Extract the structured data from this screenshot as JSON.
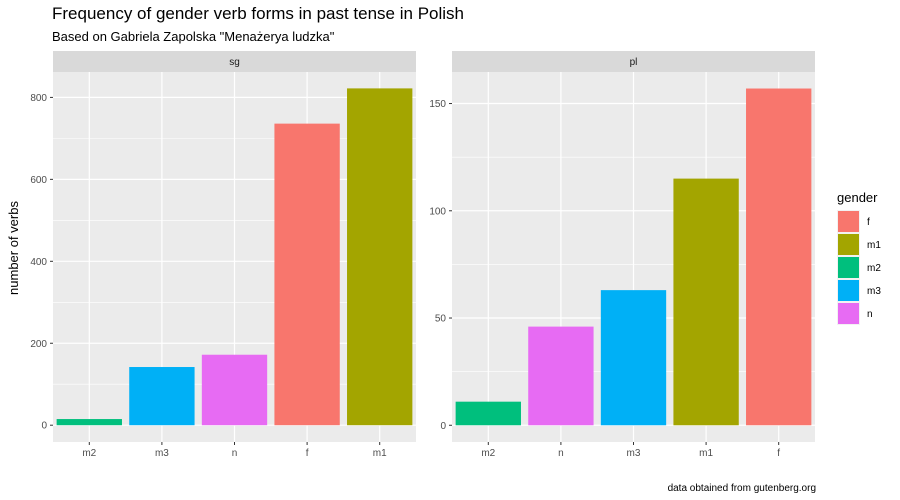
{
  "title": "Frequency of gender verb forms in past tense in Polish",
  "subtitle": "Based on Gabriela Zapolska \"Menażerya ludzka\"",
  "caption": "data obtained from gutenberg.org",
  "colors": {
    "f": "#F8766D",
    "m1": "#A3A500",
    "m2": "#00BF7D",
    "m3": "#00B0F6",
    "n": "#E76BF3",
    "panel_bg": "#EBEBEB",
    "strip_bg": "#D9D9D9",
    "grid": "#FFFFFF"
  },
  "chart_data": [
    {
      "type": "bar",
      "facet": "sg",
      "categories": [
        "m2",
        "m3",
        "n",
        "f",
        "m1"
      ],
      "values": [
        15,
        142,
        172,
        736,
        822
      ],
      "ylabel": "number of verbs",
      "xlabel": "",
      "yticks": [
        0,
        200,
        400,
        600,
        800
      ],
      "ylim": [
        -41,
        862
      ]
    },
    {
      "type": "bar",
      "facet": "pl",
      "categories": [
        "m2",
        "n",
        "m3",
        "m1",
        "f"
      ],
      "values": [
        11,
        46,
        63,
        115,
        157
      ],
      "ylabel": "",
      "xlabel": "",
      "yticks": [
        0,
        50,
        100,
        150
      ],
      "ylim": [
        -7.8,
        164.7
      ]
    }
  ],
  "legend": {
    "title": "gender",
    "placement": "right",
    "entries": [
      "f",
      "m1",
      "m2",
      "m3",
      "n"
    ]
  }
}
